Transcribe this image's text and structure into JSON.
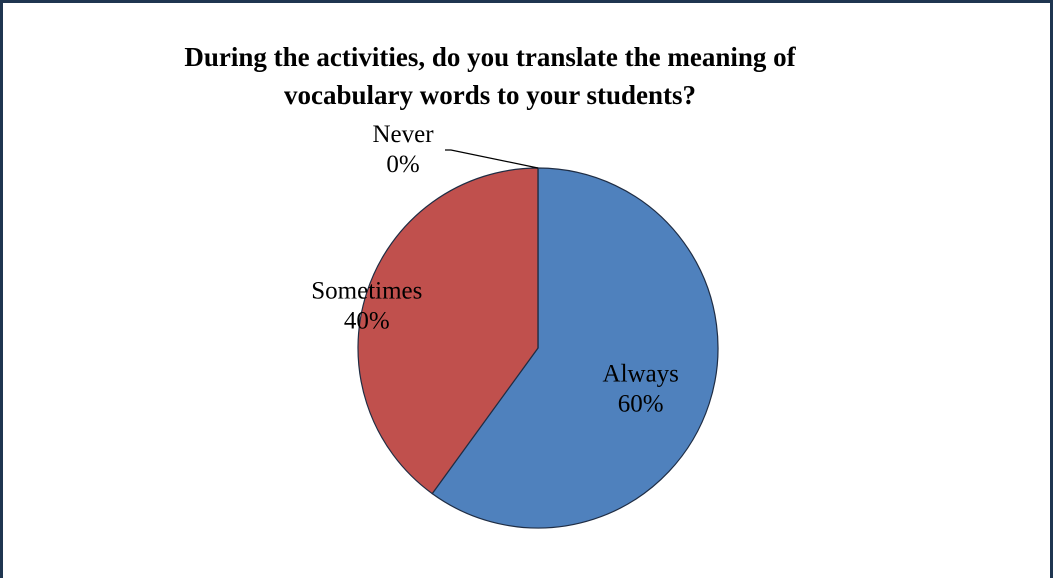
{
  "chart_data": {
    "type": "pie",
    "title": "During the activities, do you translate the meaning of vocabulary words to your students?",
    "categories": [
      "Always",
      "Sometimes",
      "Never"
    ],
    "values": [
      60,
      40,
      0
    ],
    "value_labels": [
      "60%",
      "40%",
      "0%"
    ],
    "colors": [
      "#4f81bd",
      "#c0504d",
      "#9bbb59"
    ]
  }
}
